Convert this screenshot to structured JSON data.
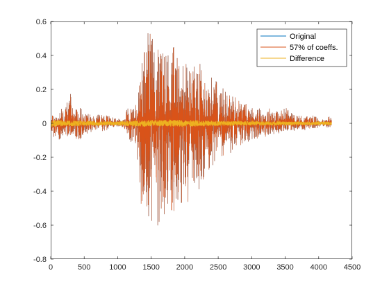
{
  "chart_data": {
    "type": "line",
    "title": "",
    "xlabel": "",
    "ylabel": "",
    "xlim": [
      0,
      4500
    ],
    "ylim": [
      -0.8,
      0.6
    ],
    "xticks": [
      0,
      500,
      1000,
      1500,
      2000,
      2500,
      3000,
      3500,
      4000,
      4500
    ],
    "yticks": [
      -0.8,
      -0.6,
      -0.4,
      -0.2,
      0,
      0.2,
      0.4,
      0.6
    ],
    "xtick_labels": [
      "0",
      "500",
      "1000",
      "1500",
      "2000",
      "2500",
      "3000",
      "3500",
      "4000",
      "4500"
    ],
    "ytick_labels": [
      "-0.8",
      "-0.6",
      "-0.4",
      "-0.2",
      "0",
      "0.2",
      "0.4",
      "0.6"
    ],
    "grid": false,
    "legend_position": "top-right",
    "n_samples": 4192,
    "series": [
      {
        "name": "Original",
        "color": "#0072BD",
        "envelope": {
          "x": [
            0,
            40,
            100,
            150,
            200,
            280,
            350,
            420,
            500,
            560,
            650,
            760,
            850,
            950,
            1000,
            1050,
            1100,
            1130,
            1180,
            1250,
            1300,
            1350,
            1400,
            1450,
            1500,
            1550,
            1600,
            1650,
            1700,
            1750,
            1800,
            1850,
            1900,
            1950,
            2000,
            2050,
            2100,
            2150,
            2200,
            2250,
            2300,
            2350,
            2400,
            2500,
            2600,
            2700,
            2800,
            2900,
            3000,
            3100,
            3200,
            3300,
            3400,
            3500,
            3600,
            3700,
            3800,
            3900,
            4000,
            4100,
            4150,
            4192
          ],
          "upper": [
            0.03,
            0.06,
            0.05,
            0.1,
            0.07,
            0.2,
            0.08,
            0.12,
            0.05,
            0.06,
            0.04,
            0.06,
            0.05,
            0.03,
            0.03,
            0.02,
            0.04,
            0.08,
            0.12,
            0.09,
            0.15,
            0.4,
            0.48,
            0.55,
            0.58,
            0.48,
            0.45,
            0.52,
            0.42,
            0.47,
            0.44,
            0.46,
            0.38,
            0.43,
            0.35,
            0.38,
            0.32,
            0.35,
            0.33,
            0.37,
            0.29,
            0.27,
            0.28,
            0.25,
            0.2,
            0.18,
            0.15,
            0.12,
            0.1,
            0.09,
            0.08,
            0.1,
            0.07,
            0.1,
            0.06,
            0.05,
            0.04,
            0.05,
            0.03,
            0.02,
            0.05,
            0.03
          ],
          "lower": [
            -0.03,
            -0.1,
            -0.08,
            -0.12,
            -0.09,
            -0.07,
            -0.08,
            -0.11,
            -0.06,
            -0.06,
            -0.04,
            -0.05,
            -0.04,
            -0.02,
            -0.02,
            -0.02,
            -0.04,
            -0.06,
            -0.12,
            -0.1,
            -0.25,
            -0.52,
            -0.4,
            -0.55,
            -0.62,
            -0.5,
            -0.66,
            -0.55,
            -0.64,
            -0.48,
            -0.58,
            -0.52,
            -0.5,
            -0.55,
            -0.45,
            -0.5,
            -0.42,
            -0.38,
            -0.44,
            -0.36,
            -0.3,
            -0.28,
            -0.26,
            -0.22,
            -0.2,
            -0.18,
            -0.15,
            -0.12,
            -0.1,
            -0.09,
            -0.08,
            -0.07,
            -0.06,
            -0.05,
            -0.05,
            -0.04,
            -0.04,
            -0.03,
            -0.03,
            -0.02,
            -0.03,
            -0.02
          ]
        }
      },
      {
        "name": "57% of coeffs.",
        "color": "#D95319",
        "envelope": {
          "x": [
            0,
            40,
            100,
            150,
            200,
            280,
            350,
            420,
            500,
            560,
            650,
            760,
            850,
            950,
            1000,
            1050,
            1100,
            1130,
            1180,
            1250,
            1300,
            1350,
            1400,
            1450,
            1500,
            1550,
            1600,
            1650,
            1700,
            1750,
            1800,
            1850,
            1900,
            1950,
            2000,
            2050,
            2100,
            2150,
            2200,
            2250,
            2300,
            2350,
            2400,
            2500,
            2600,
            2700,
            2800,
            2900,
            3000,
            3100,
            3200,
            3300,
            3400,
            3500,
            3600,
            3700,
            3800,
            3900,
            4000,
            4100,
            4150,
            4192
          ],
          "upper": [
            0.03,
            0.06,
            0.05,
            0.1,
            0.07,
            0.2,
            0.08,
            0.12,
            0.05,
            0.06,
            0.04,
            0.06,
            0.05,
            0.03,
            0.03,
            0.02,
            0.04,
            0.08,
            0.12,
            0.09,
            0.15,
            0.4,
            0.48,
            0.55,
            0.58,
            0.48,
            0.45,
            0.52,
            0.42,
            0.47,
            0.44,
            0.46,
            0.38,
            0.43,
            0.35,
            0.38,
            0.32,
            0.35,
            0.33,
            0.37,
            0.29,
            0.27,
            0.28,
            0.25,
            0.2,
            0.18,
            0.15,
            0.12,
            0.1,
            0.09,
            0.08,
            0.1,
            0.07,
            0.1,
            0.06,
            0.05,
            0.04,
            0.05,
            0.03,
            0.02,
            0.05,
            0.03
          ],
          "lower": [
            -0.03,
            -0.1,
            -0.08,
            -0.12,
            -0.09,
            -0.07,
            -0.08,
            -0.11,
            -0.06,
            -0.06,
            -0.04,
            -0.05,
            -0.04,
            -0.02,
            -0.02,
            -0.02,
            -0.04,
            -0.06,
            -0.12,
            -0.1,
            -0.25,
            -0.52,
            -0.4,
            -0.55,
            -0.62,
            -0.5,
            -0.66,
            -0.55,
            -0.64,
            -0.48,
            -0.58,
            -0.52,
            -0.5,
            -0.55,
            -0.45,
            -0.5,
            -0.42,
            -0.38,
            -0.44,
            -0.36,
            -0.3,
            -0.28,
            -0.26,
            -0.22,
            -0.2,
            -0.18,
            -0.15,
            -0.12,
            -0.1,
            -0.09,
            -0.08,
            -0.07,
            -0.06,
            -0.05,
            -0.05,
            -0.04,
            -0.04,
            -0.03,
            -0.03,
            -0.02,
            -0.03,
            -0.02
          ]
        }
      },
      {
        "name": "Difference",
        "color": "#EDB120",
        "envelope": {
          "x": [
            0,
            1000,
            1100,
            1400,
            2000,
            2500,
            3000,
            3500,
            4000,
            4192
          ],
          "upper": [
            0.02,
            0.01,
            0.015,
            0.02,
            0.02,
            0.015,
            0.012,
            0.01,
            0.01,
            0.008
          ],
          "lower": [
            -0.02,
            -0.01,
            -0.015,
            -0.02,
            -0.02,
            -0.015,
            -0.012,
            -0.01,
            -0.01,
            -0.008
          ]
        }
      }
    ]
  },
  "style": {
    "axis_color": "#262626",
    "box_color": "#262626",
    "background": "#ffffff"
  }
}
